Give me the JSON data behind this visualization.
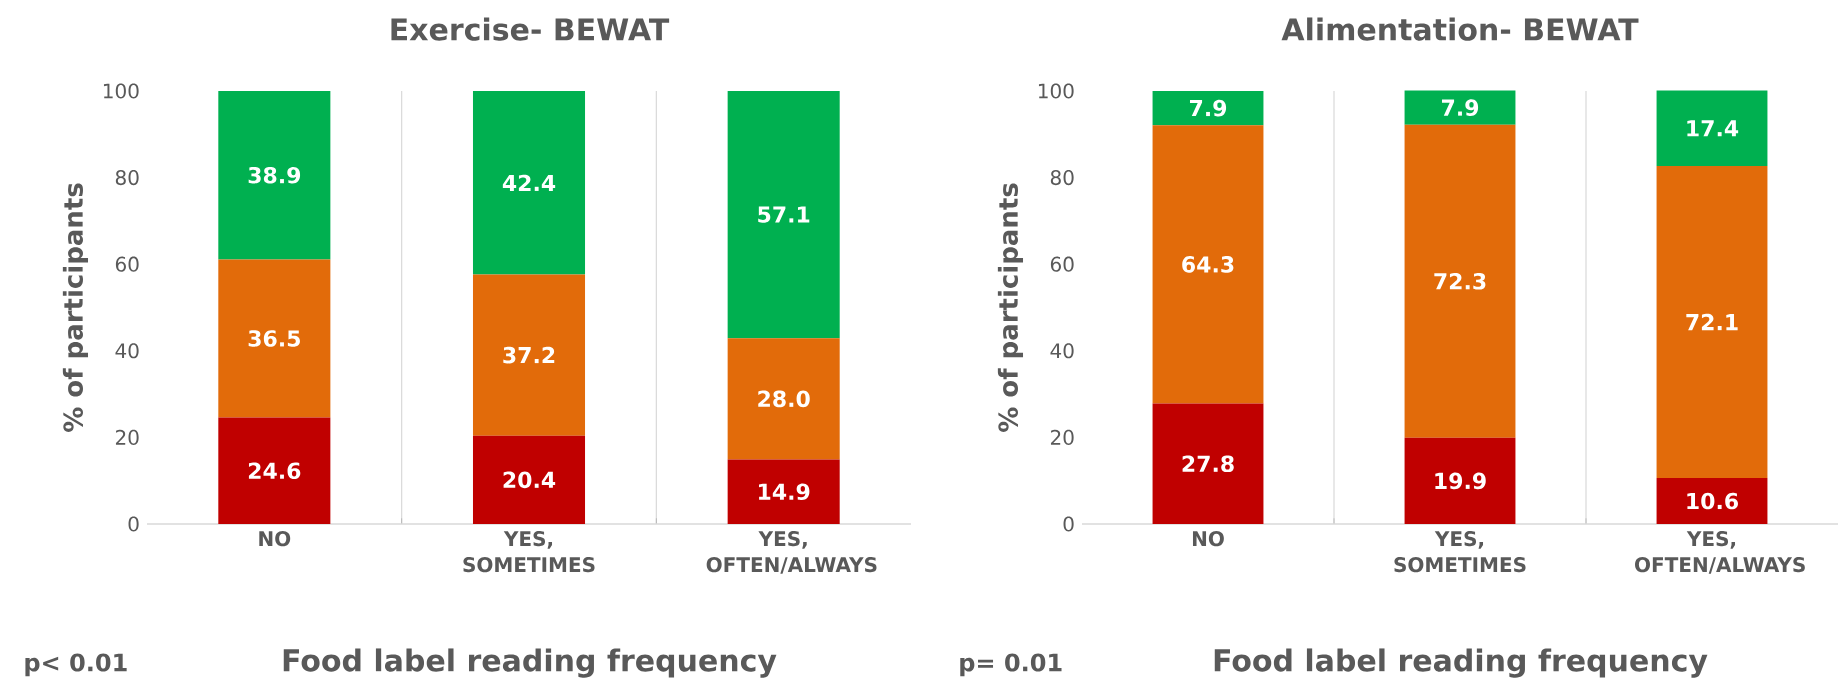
{
  "chart_data": [
    {
      "type": "bar",
      "title": "Exercise-  BEWAT",
      "xlabel": "Food label reading frequency",
      "ylabel": "% of participants",
      "categories": [
        "NO",
        "YES, SOMETIMES",
        "YES, OFTEN/ALWAYS"
      ],
      "stacked": true,
      "series": [
        {
          "color": "#c00000",
          "values": [
            24.6,
            20.4,
            14.9
          ],
          "value_labels": [
            "24.6",
            "20.4",
            "14.9"
          ]
        },
        {
          "color": "#e26b0a",
          "values": [
            36.5,
            37.2,
            28.0
          ],
          "value_labels": [
            "36.5",
            "37.2",
            "28.0"
          ]
        },
        {
          "color": "#00b050",
          "values": [
            38.9,
            42.4,
            57.1
          ],
          "value_labels": [
            "38.9",
            "42.4",
            "57.1"
          ]
        }
      ],
      "ylim": [
        0,
        100
      ],
      "yticks": [
        0,
        20,
        40,
        60,
        80,
        100
      ],
      "grid": "x",
      "annotations": [
        "p< 0.01"
      ]
    },
    {
      "type": "bar",
      "title": "Alimentation-  BEWAT",
      "xlabel": "Food label reading frequency",
      "ylabel": "% of participants",
      "categories": [
        "NO",
        "YES, SOMETIMES",
        "YES, OFTEN/ALWAYS"
      ],
      "stacked": true,
      "series": [
        {
          "color": "#c00000",
          "values": [
            27.8,
            19.9,
            10.6
          ],
          "value_labels": [
            "27.8",
            "19.9",
            "10.6"
          ]
        },
        {
          "color": "#e26b0a",
          "values": [
            64.3,
            72.3,
            72.1
          ],
          "value_labels": [
            "64.3",
            "72.3",
            "72.1"
          ]
        },
        {
          "color": "#00b050",
          "values": [
            7.9,
            7.9,
            17.4
          ],
          "value_labels": [
            "7.9",
            "7.9",
            "17.4"
          ]
        }
      ],
      "ylim": [
        0,
        100
      ],
      "yticks": [
        0,
        20,
        40,
        60,
        80,
        100
      ],
      "grid": "x",
      "annotations": [
        "p= 0.01"
      ]
    }
  ]
}
